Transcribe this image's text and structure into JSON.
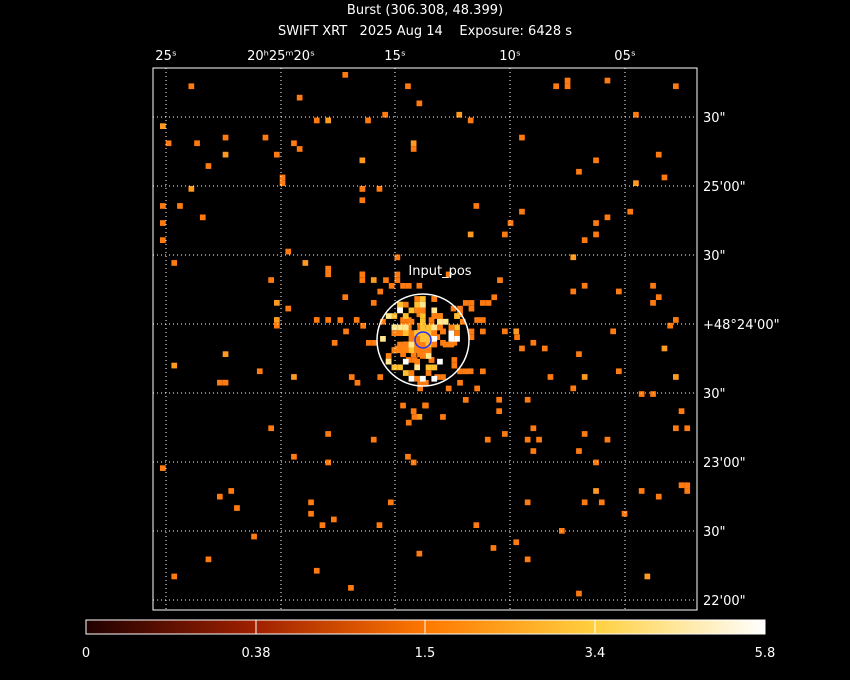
{
  "header": {
    "title": "Burst (306.308, 48.399)",
    "subtitle": "SWIFT XRT   2025 Aug 14    Exposure: 6428 s"
  },
  "top_axis": {
    "labels": [
      "25ˢ",
      "20ʰ25ᵐ20ˢ",
      "15ˢ",
      "10ˢ",
      "05ˢ"
    ]
  },
  "right_axis": {
    "labels": [
      "30\"",
      "25'00\"",
      "30\"",
      "+48°24'00\"",
      "30\"",
      "23'00\"",
      "30\"",
      "22'00\""
    ]
  },
  "annotation": {
    "label": "Input_pos"
  },
  "colorbar": {
    "labels": [
      "0",
      "0.38",
      "1.5",
      "3.4",
      "5.8"
    ]
  }
}
